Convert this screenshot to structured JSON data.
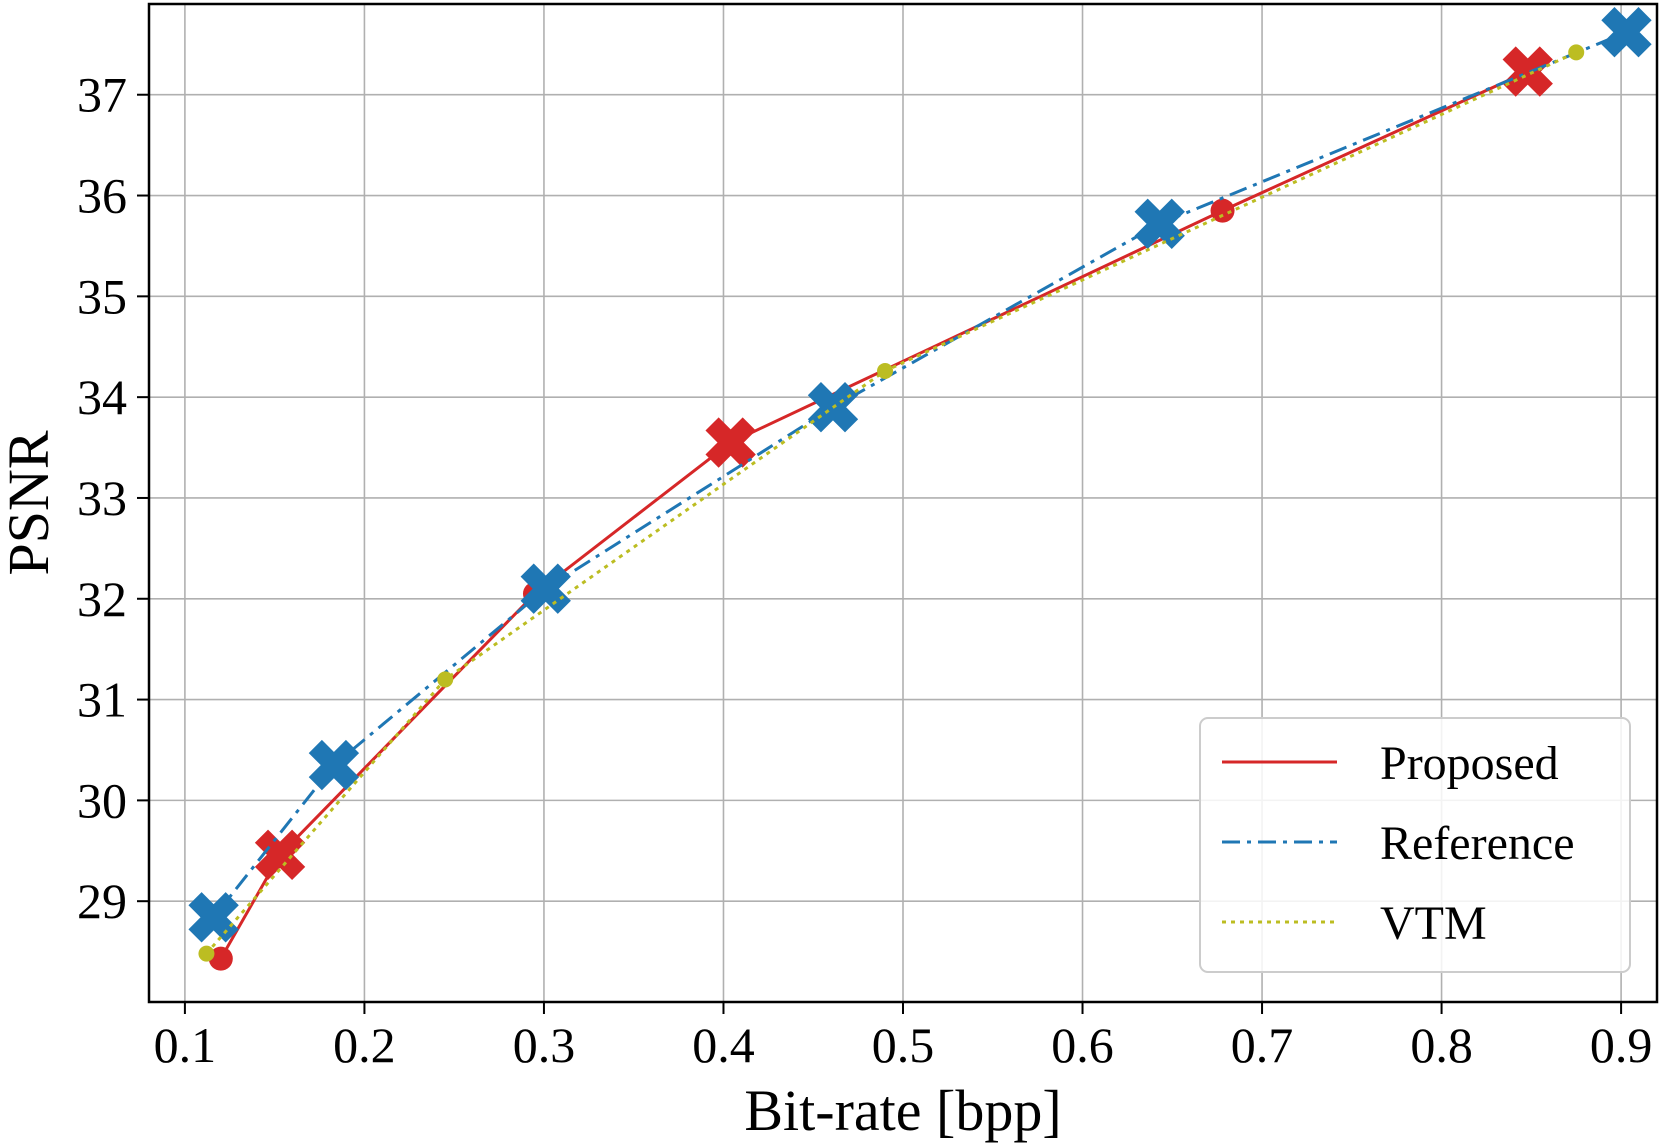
{
  "chart_data": {
    "type": "line",
    "xlabel": "Bit-rate [bpp]",
    "ylabel": "PSNR",
    "xlim": [
      0.08,
      0.92
    ],
    "ylim": [
      28.0,
      37.9
    ],
    "xticks": [
      "0.1",
      "0.2",
      "0.3",
      "0.4",
      "0.5",
      "0.6",
      "0.7",
      "0.8",
      "0.9"
    ],
    "yticks": [
      "29",
      "30",
      "31",
      "32",
      "33",
      "34",
      "35",
      "36",
      "37"
    ],
    "grid": true,
    "legend_position": "lower-right",
    "series": [
      {
        "name": "Proposed",
        "color": "#d62728",
        "line_style": "solid",
        "points": [
          {
            "x": 0.12,
            "y": 28.43,
            "marker": "circle"
          },
          {
            "x": 0.153,
            "y": 29.46,
            "marker": "x"
          },
          {
            "x": 0.295,
            "y": 32.05,
            "marker": "circle"
          },
          {
            "x": 0.404,
            "y": 33.55,
            "marker": "x"
          },
          {
            "x": 0.678,
            "y": 35.85,
            "marker": "circle"
          },
          {
            "x": 0.848,
            "y": 37.23,
            "marker": "x"
          }
        ]
      },
      {
        "name": "Reference",
        "color": "#1f77b4",
        "line_style": "dashdot",
        "points": [
          {
            "x": 0.116,
            "y": 28.84,
            "marker": "x"
          },
          {
            "x": 0.183,
            "y": 30.35,
            "marker": "x"
          },
          {
            "x": 0.301,
            "y": 32.1,
            "marker": "x"
          },
          {
            "x": 0.461,
            "y": 33.9,
            "marker": "x"
          },
          {
            "x": 0.643,
            "y": 35.72,
            "marker": "x"
          },
          {
            "x": 0.903,
            "y": 37.62,
            "marker": "x"
          }
        ]
      },
      {
        "name": "VTM",
        "color": "#bcbd22",
        "line_style": "dotted",
        "points": [
          {
            "x": 0.112,
            "y": 28.48,
            "marker": "dot"
          },
          {
            "x": 0.245,
            "y": 31.2,
            "marker": "dot"
          },
          {
            "x": 0.49,
            "y": 34.26,
            "marker": "dot"
          },
          {
            "x": 0.875,
            "y": 37.42,
            "marker": "dot"
          }
        ]
      }
    ]
  }
}
